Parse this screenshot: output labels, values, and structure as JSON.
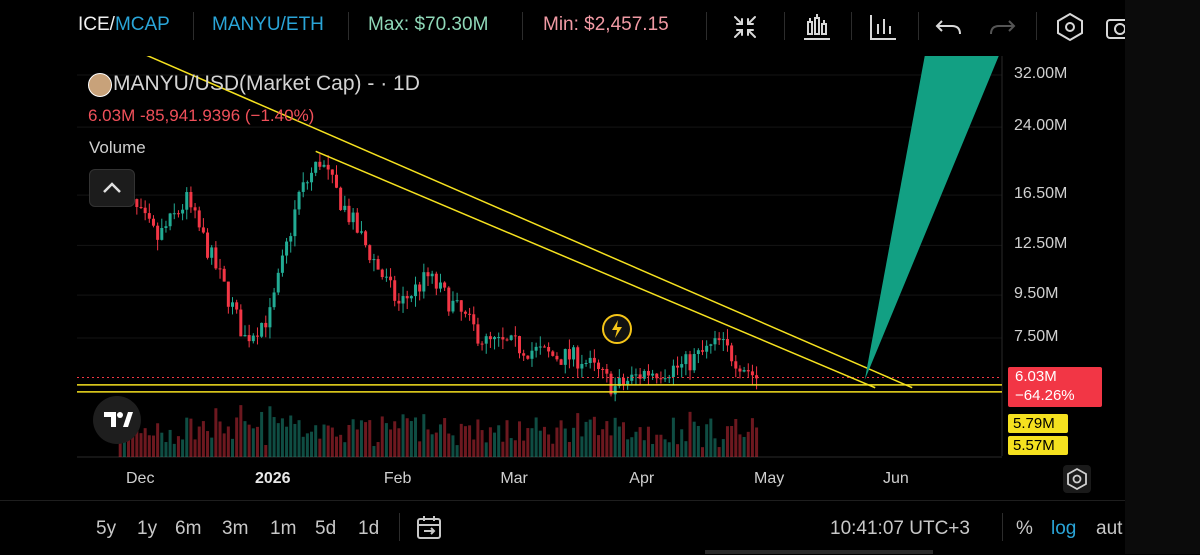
{
  "toolbar": {
    "price_label": "ICE/",
    "mcap_label": "MCAP",
    "pair_label": "MANYU/ETH",
    "max_label": "Max: $70.30M",
    "min_label": "Min: $2,457.15",
    "icons": [
      "collapse-arrows-icon",
      "indicators-icon",
      "chart-type-icon",
      "undo-icon",
      "redo-icon",
      "settings-hexagon-icon",
      "camera-icon"
    ]
  },
  "legend": {
    "title": "MANYU/USD(Market Cap) - · 1D",
    "values": "6.03M  -85,941.9396 (−1.40%)",
    "volume": "Volume"
  },
  "price_tag": {
    "value": "6.03M",
    "change": "−64.26%"
  },
  "yellow_tags": [
    "5.79M",
    "5.57M"
  ],
  "bottom": {
    "ranges": [
      "5y",
      "1y",
      "6m",
      "3m",
      "1m",
      "5d",
      "1d"
    ],
    "time": "10:41:07 UTC+3",
    "percent": "%",
    "log": "log",
    "auto": "aut"
  },
  "colors": {
    "up": "#22ab94",
    "down": "#f23645",
    "trendline": "#f5e11f",
    "projection": "#12a083",
    "price_tag": "#f23645"
  },
  "chart_data": {
    "type": "candlestick",
    "title": "MANYU/USD(Market Cap) - · 1D",
    "yaxis": {
      "scale": "log",
      "ticks": [
        "32.00M",
        "24.00M",
        "16.50M",
        "12.50M",
        "9.50M",
        "7.50M"
      ]
    },
    "xaxis": {
      "ticks": [
        "Dec",
        "2026",
        "Feb",
        "Mar",
        "Apr",
        "May",
        "Jun"
      ]
    },
    "last_value_M": 6.03,
    "change_pct": -64.26,
    "levels_M": [
      5.79,
      5.57
    ],
    "trendline_start": {
      "date": "2025-11-26",
      "value_M": 38
    },
    "trendline_end": {
      "date": "2026-05-27",
      "value_M": 5.7
    },
    "projection_top_M": 38,
    "anchors": [
      {
        "d": "2025-11-26",
        "v": 17
      },
      {
        "d": "2025-12-05",
        "v": 13
      },
      {
        "d": "2025-12-12",
        "v": 16
      },
      {
        "d": "2025-12-20",
        "v": 10.5
      },
      {
        "d": "2025-12-26",
        "v": 7.5
      },
      {
        "d": "2026-01-01",
        "v": 8.5
      },
      {
        "d": "2026-01-08",
        "v": 16.5
      },
      {
        "d": "2026-01-13",
        "v": 20
      },
      {
        "d": "2026-01-18",
        "v": 16
      },
      {
        "d": "2026-01-25",
        "v": 12
      },
      {
        "d": "2026-02-01",
        "v": 9
      },
      {
        "d": "2026-02-08",
        "v": 10.5
      },
      {
        "d": "2026-02-14",
        "v": 9
      },
      {
        "d": "2026-02-22",
        "v": 7.3
      },
      {
        "d": "2026-03-01",
        "v": 7.2
      },
      {
        "d": "2026-03-10",
        "v": 6.8
      },
      {
        "d": "2026-03-17",
        "v": 6.7
      },
      {
        "d": "2026-03-25",
        "v": 5.7
      },
      {
        "d": "2026-04-01",
        "v": 6.2
      },
      {
        "d": "2026-04-10",
        "v": 6.4
      },
      {
        "d": "2026-04-19",
        "v": 7.3
      },
      {
        "d": "2026-04-23",
        "v": 6.7
      },
      {
        "d": "2026-04-28",
        "v": 6.03
      }
    ]
  }
}
